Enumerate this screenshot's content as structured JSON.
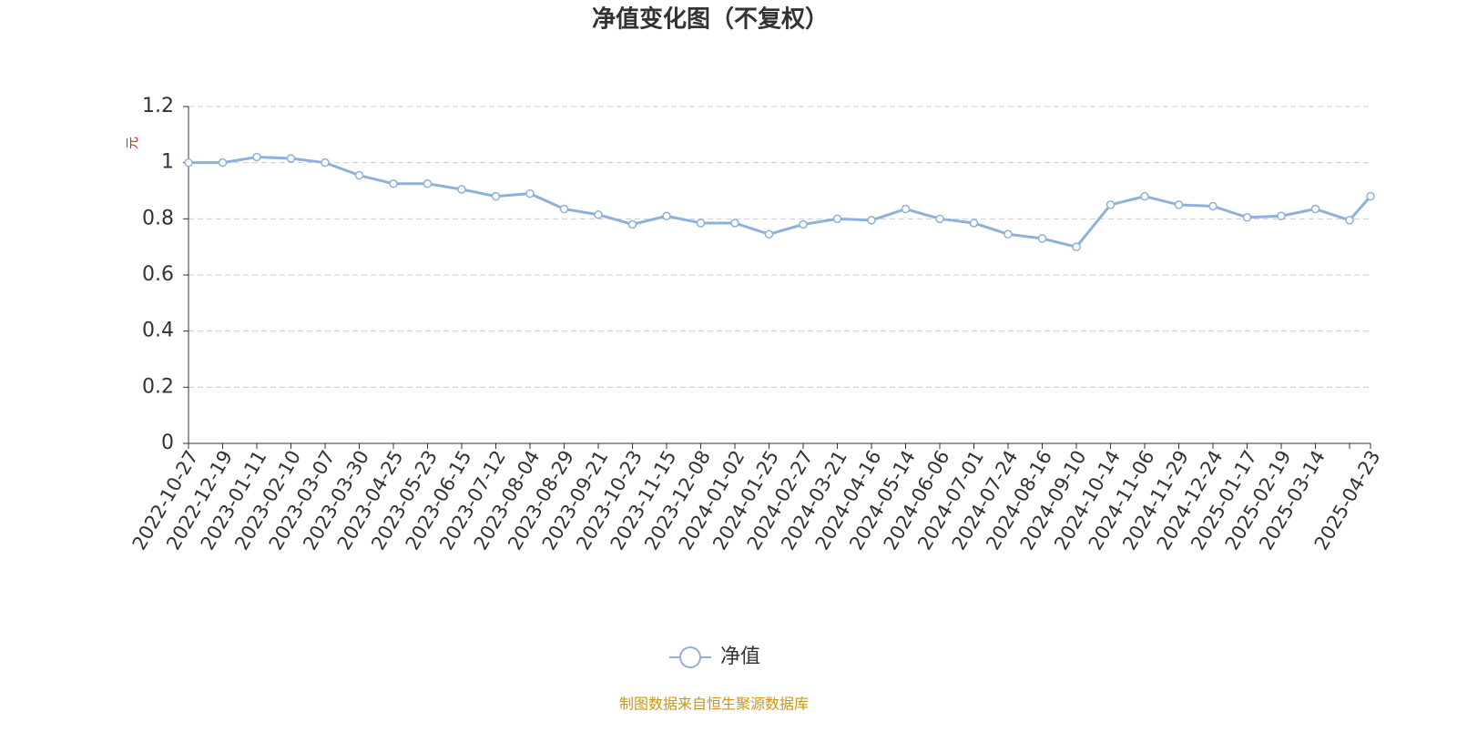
{
  "chart_data": {
    "type": "line",
    "title": "净值变化图（不复权）",
    "y_label": "元",
    "categories": [
      "2022-10-27",
      "2022-12-19",
      "2023-01-11",
      "2023-02-10",
      "2023-03-07",
      "2023-03-30",
      "2023-04-25",
      "2023-05-23",
      "2023-06-15",
      "2023-07-12",
      "2023-08-04",
      "2023-08-29",
      "2023-09-21",
      "2023-10-23",
      "2023-11-15",
      "2023-12-08",
      "2024-01-02",
      "2024-01-25",
      "2024-02-27",
      "2024-03-21",
      "2024-04-16",
      "2024-05-14",
      "2024-06-06",
      "2024-07-01",
      "2024-07-24",
      "2024-08-16",
      "2024-09-10",
      "2024-10-14",
      "2024-11-06",
      "2024-11-29",
      "2024-12-24",
      "2025-01-17",
      "2025-02-19",
      "2025-03-14",
      null,
      "2025-04-23"
    ],
    "series": [
      {
        "name": "净值",
        "color": "#8fb0dc",
        "values": [
          1.0,
          1.0,
          1.02,
          1.015,
          1.0,
          0.955,
          0.925,
          0.925,
          0.905,
          0.88,
          0.89,
          0.835,
          0.815,
          0.78,
          0.81,
          0.785,
          0.785,
          0.745,
          0.78,
          0.8,
          0.795,
          0.835,
          0.8,
          0.785,
          0.745,
          0.73,
          0.7,
          0.85,
          0.88,
          0.85,
          0.845,
          0.805,
          0.81,
          0.835,
          0.795,
          0.88
        ]
      }
    ],
    "ylim": [
      0,
      1.2
    ],
    "yticks": [
      0,
      0.2,
      0.4,
      0.6,
      0.8,
      1,
      1.2
    ],
    "grid": true,
    "legend": "bottom",
    "source": "制图数据来自恒生聚源数据库"
  }
}
